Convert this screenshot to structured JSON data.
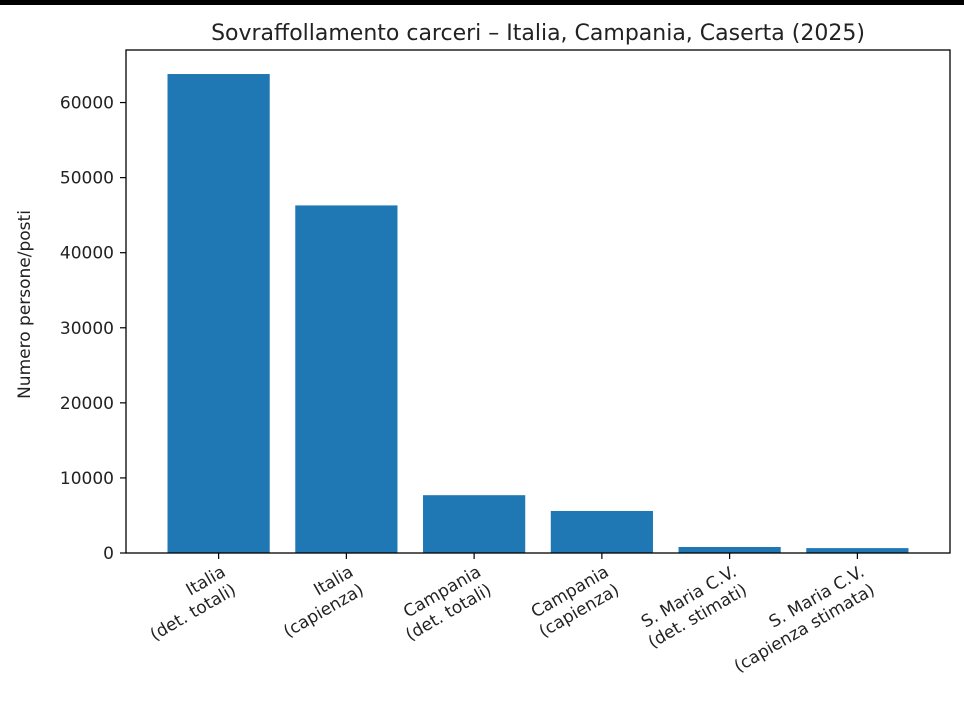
{
  "chart_data": {
    "type": "bar",
    "title": "Sovraffollamento carceri – Italia, Campania, Caserta (2025)",
    "xlabel": "",
    "ylabel": "Numero persone/posti",
    "categories": [
      [
        "Italia",
        "(det. totali)"
      ],
      [
        "Italia",
        "(capienza)"
      ],
      [
        "Campania",
        "(det. totali)"
      ],
      [
        "Campania",
        "(capienza)"
      ],
      [
        "S. Maria C.V.",
        "(det. stimati)"
      ],
      [
        "S. Maria C.V.",
        "(capienza stimata)"
      ]
    ],
    "values": [
      63800,
      46300,
      7700,
      5600,
      800,
      650
    ],
    "yticks": [
      0,
      10000,
      20000,
      30000,
      40000,
      50000,
      60000
    ],
    "ytick_labels": [
      "0",
      "10000",
      "20000",
      "30000",
      "40000",
      "50000",
      "60000"
    ],
    "ylim": [
      0,
      67000
    ],
    "grid": false,
    "bar_color": "#1f77b4"
  }
}
